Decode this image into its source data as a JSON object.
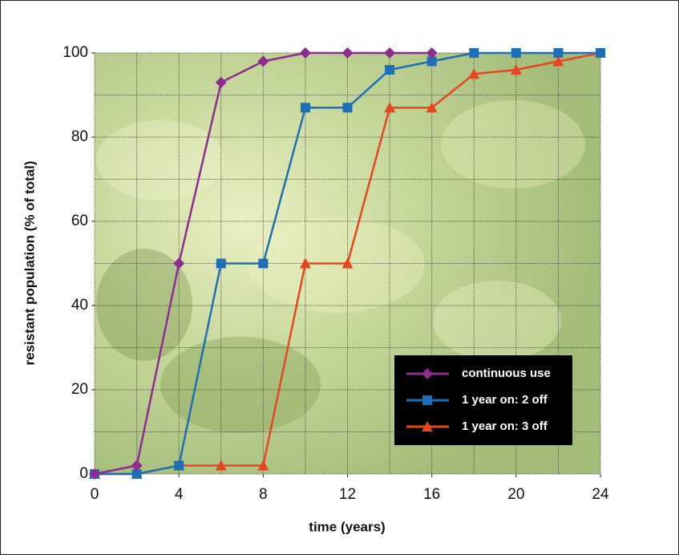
{
  "chart_data": {
    "type": "line",
    "x_label": "time (years)",
    "y_label": "resistant population (% of total)",
    "x": [
      0,
      2,
      4,
      6,
      8,
      10,
      12,
      14,
      16,
      18,
      20,
      22,
      24
    ],
    "series": [
      {
        "name": "continuous use",
        "color": "#8e2d91",
        "marker": "diamond",
        "values": [
          0,
          2,
          50,
          93,
          98,
          100,
          100,
          100,
          100,
          null,
          null,
          null,
          null
        ]
      },
      {
        "name": "1 year on: 2 off",
        "color": "#1d6fb8",
        "marker": "square",
        "values": [
          0,
          0,
          2,
          50,
          50,
          87,
          87,
          96,
          98,
          100,
          100,
          100,
          100
        ]
      },
      {
        "name": "1 year on: 3 off",
        "color": "#e8461e",
        "marker": "triangle",
        "values": [
          0,
          0,
          2,
          2,
          2,
          50,
          50,
          87,
          87,
          95,
          96,
          98,
          100
        ]
      }
    ],
    "xlim": [
      0,
      24
    ],
    "ylim": [
      0,
      100
    ],
    "xticks": [
      0,
      4,
      8,
      12,
      16,
      20,
      24
    ],
    "yticks": [
      0,
      20,
      40,
      60,
      80,
      100
    ],
    "xgrid": [
      0,
      2,
      4,
      6,
      8,
      10,
      12,
      14,
      16,
      18,
      20,
      22,
      24
    ],
    "ygrid": [
      0,
      10,
      20,
      30,
      40,
      50,
      60,
      70,
      80,
      90,
      100
    ],
    "legend": "lower right"
  }
}
